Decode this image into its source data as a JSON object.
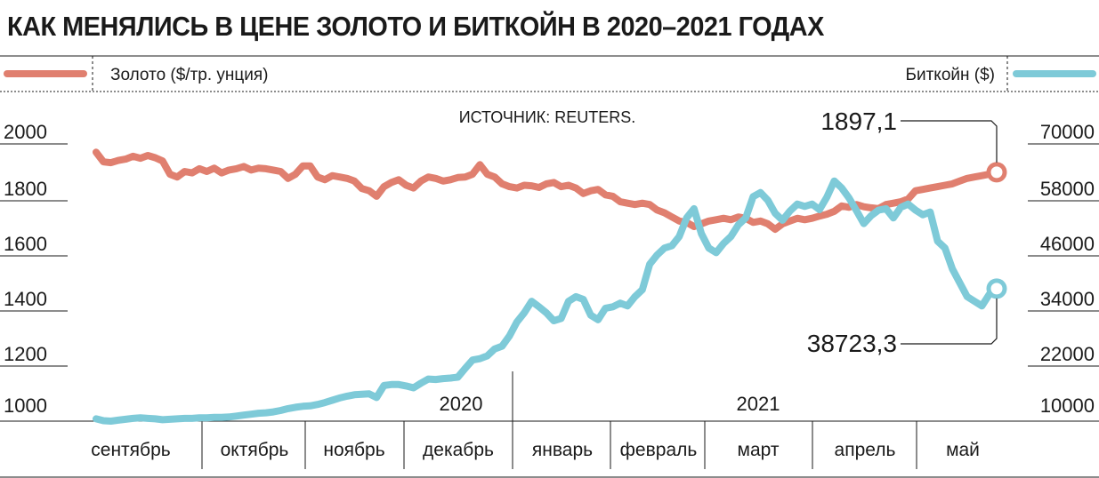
{
  "chart_data": {
    "type": "line",
    "title": "КАК МЕНЯЛИСЬ В ЦЕНЕ ЗОЛОТО И БИТКОЙН В 2020–2021 ГОДАХ",
    "source": "ИСТОЧНИК: REUTERS.",
    "years": [
      "2020",
      "2021"
    ],
    "months": [
      "сентябрь",
      "октябрь",
      "ноябрь",
      "декабрь",
      "январь",
      "февраль",
      "март",
      "апрель",
      "май"
    ],
    "left_axis": {
      "ticks": [
        "2000",
        "1800",
        "1600",
        "1400",
        "1200",
        "1000"
      ],
      "range": [
        950,
        2050
      ]
    },
    "right_axis": {
      "ticks": [
        "70000",
        "58000",
        "46000",
        "34000",
        "22000",
        "10000"
      ],
      "range": [
        7500,
        72500
      ]
    },
    "series": [
      {
        "name": "Золото ($/тр. унция)",
        "axis": "left",
        "color": "#e07f6f",
        "values": [
          1970,
          1935,
          1932,
          1940,
          1945,
          1955,
          1948,
          1958,
          1950,
          1938,
          1890,
          1880,
          1900,
          1895,
          1910,
          1900,
          1912,
          1895,
          1905,
          1910,
          1918,
          1905,
          1912,
          1910,
          1905,
          1900,
          1875,
          1890,
          1920,
          1920,
          1880,
          1870,
          1885,
          1880,
          1875,
          1865,
          1838,
          1830,
          1810,
          1845,
          1860,
          1870,
          1850,
          1840,
          1865,
          1880,
          1875,
          1865,
          1870,
          1878,
          1880,
          1890,
          1925,
          1890,
          1880,
          1855,
          1845,
          1840,
          1850,
          1848,
          1842,
          1855,
          1860,
          1845,
          1850,
          1840,
          1820,
          1830,
          1835,
          1815,
          1810,
          1790,
          1785,
          1780,
          1785,
          1780,
          1760,
          1750,
          1735,
          1720,
          1715,
          1700,
          1710,
          1720,
          1725,
          1730,
          1725,
          1735,
          1730,
          1715,
          1720,
          1710,
          1690,
          1710,
          1720,
          1730,
          1725,
          1730,
          1738,
          1745,
          1755,
          1775,
          1770,
          1780,
          1772,
          1768,
          1765,
          1780,
          1785,
          1790,
          1800,
          1830,
          1835,
          1840,
          1845,
          1850,
          1855,
          1865,
          1875,
          1880,
          1885,
          1890,
          1897.1
        ]
      },
      {
        "name": "Биткойн ($)",
        "axis": "right",
        "color": "#7ecad8",
        "values": [
          10600,
          10200,
          10100,
          10300,
          10500,
          10700,
          10800,
          10700,
          10600,
          10400,
          10500,
          10600,
          10700,
          10700,
          10800,
          10800,
          10900,
          10900,
          11000,
          11200,
          11400,
          11600,
          11800,
          11900,
          12100,
          12400,
          12800,
          13100,
          13300,
          13400,
          13700,
          14100,
          14600,
          15100,
          15500,
          15800,
          15900,
          16000,
          15200,
          17800,
          18000,
          18000,
          17700,
          17300,
          18300,
          19200,
          19100,
          19300,
          19400,
          19600,
          21500,
          23300,
          23600,
          24200,
          25700,
          26300,
          28500,
          31500,
          33500,
          36000,
          34800,
          33500,
          31800,
          32300,
          36000,
          37000,
          36400,
          33000,
          32000,
          34500,
          34800,
          35600,
          35000,
          37000,
          38500,
          44000,
          46000,
          47500,
          48000,
          50000,
          54000,
          56000,
          50600,
          47500,
          46500,
          48500,
          50000,
          52500,
          54000,
          58600,
          59500,
          57800,
          55000,
          53500,
          55500,
          57000,
          56500,
          57000,
          55800,
          58500,
          62000,
          60500,
          58300,
          55600,
          52800,
          54500,
          55700,
          56000,
          54000,
          56300,
          57000,
          55700,
          54700,
          55300,
          49000,
          47500,
          43000,
          40000,
          37000,
          36000,
          35000,
          37500,
          38723.3
        ]
      }
    ],
    "annotations": {
      "gold_last": "1897,1",
      "btc_last": "38723,3"
    },
    "grid": false,
    "legend": "top"
  }
}
